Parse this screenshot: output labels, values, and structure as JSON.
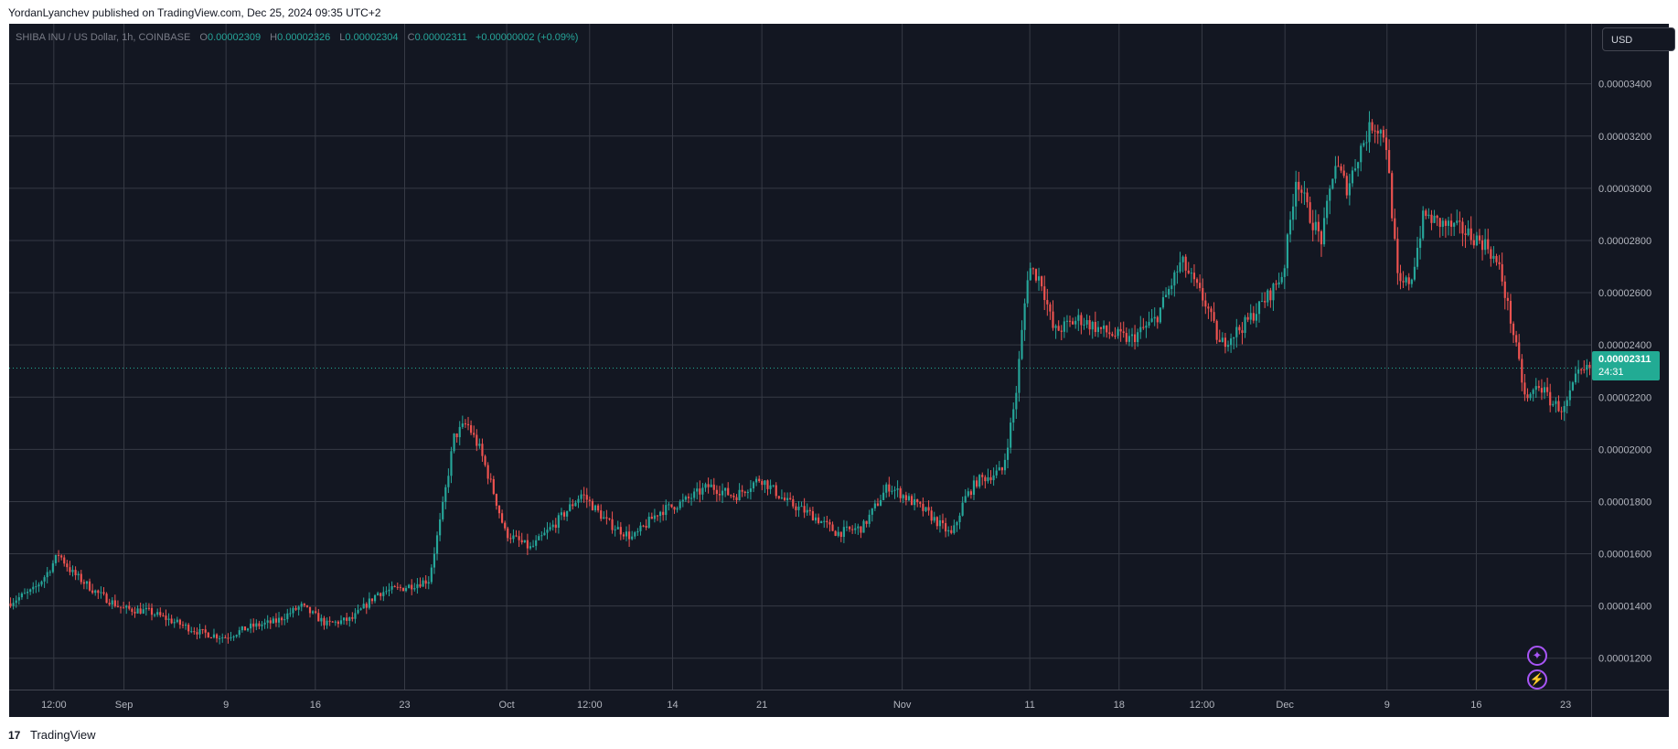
{
  "header": {
    "publish_text": "YordanLyanchev published on TradingView.com, Dec 25, 2024 09:35 UTC+2"
  },
  "footer": {
    "logo_mark": "17",
    "brand": "TradingView"
  },
  "legend": {
    "symbol_line": "SHIBA INU / US Dollar, 1h, COINBASE",
    "open_key": "O",
    "open": "0.00002309",
    "high_key": "H",
    "high": "0.00002326",
    "low_key": "L",
    "low": "0.00002304",
    "close_key": "C",
    "close": "0.00002311",
    "change": "+0.00000002 (+0.09%)"
  },
  "toolbar": {
    "currency": "USD"
  },
  "last_price": {
    "price": "0.00002311",
    "countdown": "24:31"
  },
  "icons": {
    "spark": "sparkle-icon",
    "bolt": "lightning-icon"
  },
  "colors": {
    "background": "#131722",
    "grid": "#363a45",
    "up": "#26a69a",
    "down": "#ef5350",
    "last_price": "#22ab94",
    "accent_icon": "#a855f7"
  },
  "chart_data": {
    "type": "candlestick",
    "symbol": "SHIBA INU / US Dollar",
    "interval": "1h",
    "exchange": "COINBASE",
    "currency": "USD",
    "price_scale": {
      "ylim": [
        1.08e-05,
        3.63e-05
      ],
      "ticks": [
        {
          "value": 1.2e-05,
          "label": "0.00001200"
        },
        {
          "value": 1.4e-05,
          "label": "0.00001400"
        },
        {
          "value": 1.6e-05,
          "label": "0.00001600"
        },
        {
          "value": 1.8e-05,
          "label": "0.00001800"
        },
        {
          "value": 2e-05,
          "label": "0.00002000"
        },
        {
          "value": 2.2e-05,
          "label": "0.00002200"
        },
        {
          "value": 2.4e-05,
          "label": "0.00002400"
        },
        {
          "value": 2.6e-05,
          "label": "0.00002600"
        },
        {
          "value": 2.8e-05,
          "label": "0.00002800"
        },
        {
          "value": 3e-05,
          "label": "0.00003000"
        },
        {
          "value": 3.2e-05,
          "label": "0.00003200"
        },
        {
          "value": 3.4e-05,
          "label": "0.00003400"
        }
      ]
    },
    "time_scale": {
      "range": [
        "2024-08-23",
        "2024-12-25"
      ],
      "ticks": [
        {
          "date": "2024-08-26T12:00",
          "label": "12:00"
        },
        {
          "date": "2024-09-01",
          "label": "Sep"
        },
        {
          "date": "2024-09-09",
          "label": "9"
        },
        {
          "date": "2024-09-16",
          "label": "16"
        },
        {
          "date": "2024-09-23",
          "label": "23"
        },
        {
          "date": "2024-10-01",
          "label": "Oct"
        },
        {
          "date": "2024-10-07T12:00",
          "label": "12:00"
        },
        {
          "date": "2024-10-14",
          "label": "14"
        },
        {
          "date": "2024-10-21",
          "label": "21"
        },
        {
          "date": "2024-11-01",
          "label": "Nov"
        },
        {
          "date": "2024-11-11",
          "label": "11"
        },
        {
          "date": "2024-11-18",
          "label": "18"
        },
        {
          "date": "2024-11-24T12:00",
          "label": "12:00"
        },
        {
          "date": "2024-12-01",
          "label": "Dec"
        },
        {
          "date": "2024-12-09",
          "label": "9"
        },
        {
          "date": "2024-12-16",
          "label": "16"
        },
        {
          "date": "2024-12-23",
          "label": "23"
        }
      ]
    },
    "last_price": 2.311e-05,
    "price_path": [
      [
        "2024-08-23",
        1.41e-05
      ],
      [
        "2024-08-25",
        1.46e-05
      ],
      [
        "2024-08-26",
        1.52e-05
      ],
      [
        "2024-08-27",
        1.6e-05
      ],
      [
        "2024-08-28",
        1.53e-05
      ],
      [
        "2024-08-30",
        1.45e-05
      ],
      [
        "2024-09-01",
        1.39e-05
      ],
      [
        "2024-09-03",
        1.38e-05
      ],
      [
        "2024-09-05",
        1.34e-05
      ],
      [
        "2024-09-07",
        1.3e-05
      ],
      [
        "2024-09-09",
        1.28e-05
      ],
      [
        "2024-09-11",
        1.32e-05
      ],
      [
        "2024-09-13",
        1.34e-05
      ],
      [
        "2024-09-15",
        1.4e-05
      ],
      [
        "2024-09-17",
        1.33e-05
      ],
      [
        "2024-09-19",
        1.35e-05
      ],
      [
        "2024-09-21",
        1.45e-05
      ],
      [
        "2024-09-23",
        1.47e-05
      ],
      [
        "2024-09-25",
        1.5e-05
      ],
      [
        "2024-09-26",
        1.75e-05
      ],
      [
        "2024-09-27",
        2.05e-05
      ],
      [
        "2024-09-28",
        2.1e-05
      ],
      [
        "2024-09-29",
        2e-05
      ],
      [
        "2024-09-30",
        1.85e-05
      ],
      [
        "2024-10-01",
        1.68e-05
      ],
      [
        "2024-10-03",
        1.62e-05
      ],
      [
        "2024-10-05",
        1.72e-05
      ],
      [
        "2024-10-07",
        1.83e-05
      ],
      [
        "2024-10-09",
        1.72e-05
      ],
      [
        "2024-10-11",
        1.66e-05
      ],
      [
        "2024-10-13",
        1.76e-05
      ],
      [
        "2024-10-15",
        1.8e-05
      ],
      [
        "2024-10-17",
        1.86e-05
      ],
      [
        "2024-10-19",
        1.82e-05
      ],
      [
        "2024-10-21",
        1.89e-05
      ],
      [
        "2024-10-23",
        1.8e-05
      ],
      [
        "2024-10-25",
        1.75e-05
      ],
      [
        "2024-10-27",
        1.68e-05
      ],
      [
        "2024-10-29",
        1.7e-05
      ],
      [
        "2024-10-31",
        1.86e-05
      ],
      [
        "2024-11-01",
        1.83e-05
      ],
      [
        "2024-11-03",
        1.76e-05
      ],
      [
        "2024-11-05",
        1.67e-05
      ],
      [
        "2024-11-06",
        1.81e-05
      ],
      [
        "2024-11-07",
        1.88e-05
      ],
      [
        "2024-11-09",
        1.92e-05
      ],
      [
        "2024-11-10",
        2.2e-05
      ],
      [
        "2024-11-11",
        2.7e-05
      ],
      [
        "2024-11-12",
        2.65e-05
      ],
      [
        "2024-11-13",
        2.45e-05
      ],
      [
        "2024-11-15",
        2.5e-05
      ],
      [
        "2024-11-17",
        2.45e-05
      ],
      [
        "2024-11-19",
        2.42e-05
      ],
      [
        "2024-11-21",
        2.5e-05
      ],
      [
        "2024-11-23",
        2.72e-05
      ],
      [
        "2024-11-25",
        2.55e-05
      ],
      [
        "2024-11-26",
        2.4e-05
      ],
      [
        "2024-11-28",
        2.48e-05
      ],
      [
        "2024-11-30",
        2.6e-05
      ],
      [
        "2024-12-01",
        2.68e-05
      ],
      [
        "2024-12-02",
        3.05e-05
      ],
      [
        "2024-12-03",
        2.9e-05
      ],
      [
        "2024-12-04",
        2.8e-05
      ],
      [
        "2024-12-05",
        3.1e-05
      ],
      [
        "2024-12-06",
        3e-05
      ],
      [
        "2024-12-07",
        3.15e-05
      ],
      [
        "2024-12-08",
        3.25e-05
      ],
      [
        "2024-12-09",
        3.2e-05
      ],
      [
        "2024-12-10",
        2.62e-05
      ],
      [
        "2024-12-11",
        2.65e-05
      ],
      [
        "2024-12-12",
        2.9e-05
      ],
      [
        "2024-12-13",
        2.87e-05
      ],
      [
        "2024-12-15",
        2.84e-05
      ],
      [
        "2024-12-17",
        2.78e-05
      ],
      [
        "2024-12-18",
        2.68e-05
      ],
      [
        "2024-12-19",
        2.45e-05
      ],
      [
        "2024-12-20",
        2.18e-05
      ],
      [
        "2024-12-21",
        2.25e-05
      ],
      [
        "2024-12-22",
        2.18e-05
      ],
      [
        "2024-12-23",
        2.15e-05
      ],
      [
        "2024-12-24",
        2.28e-05
      ],
      [
        "2024-12-25",
        2.31e-05
      ]
    ]
  }
}
